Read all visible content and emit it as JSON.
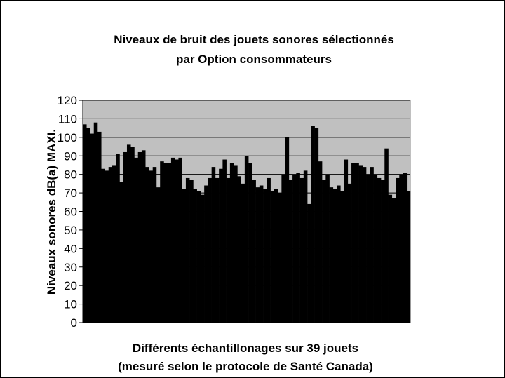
{
  "chart_data": {
    "type": "bar",
    "title": [
      "Niveaux de bruit des jouets sonores sélectionnés",
      "par Option consommateurs"
    ],
    "y_label": "Niveaux sonores dB(a) MAXI.",
    "x_label": [
      "Différents échantillonages sur 39 jouets",
      "(mesuré selon le protocole de Santé Canada)"
    ],
    "values": [
      107,
      105,
      102,
      108,
      103,
      83,
      82,
      84,
      85,
      91,
      76,
      92,
      96,
      95,
      89,
      92,
      93,
      84,
      82,
      84,
      73,
      87,
      86,
      86,
      89,
      88,
      89,
      72,
      78,
      77,
      72,
      71,
      69,
      74,
      78,
      84,
      78,
      83,
      88,
      78,
      86,
      85,
      79,
      75,
      90,
      86,
      77,
      73,
      74,
      72,
      78,
      71,
      72,
      70,
      80,
      100,
      77,
      80,
      81,
      78,
      82,
      64,
      106,
      105,
      87,
      77,
      80,
      73,
      72,
      74,
      71,
      88,
      75,
      86,
      86,
      85,
      84,
      80,
      84,
      80,
      78,
      77,
      94,
      69,
      67,
      78,
      80,
      81,
      71
    ],
    "color": "#000000",
    "plot_background": "#c0c0c0",
    "ylim": [
      0,
      120
    ],
    "yticks": [
      0,
      10,
      20,
      30,
      40,
      50,
      60,
      70,
      80,
      90,
      100,
      110,
      120
    ],
    "grid": true
  }
}
